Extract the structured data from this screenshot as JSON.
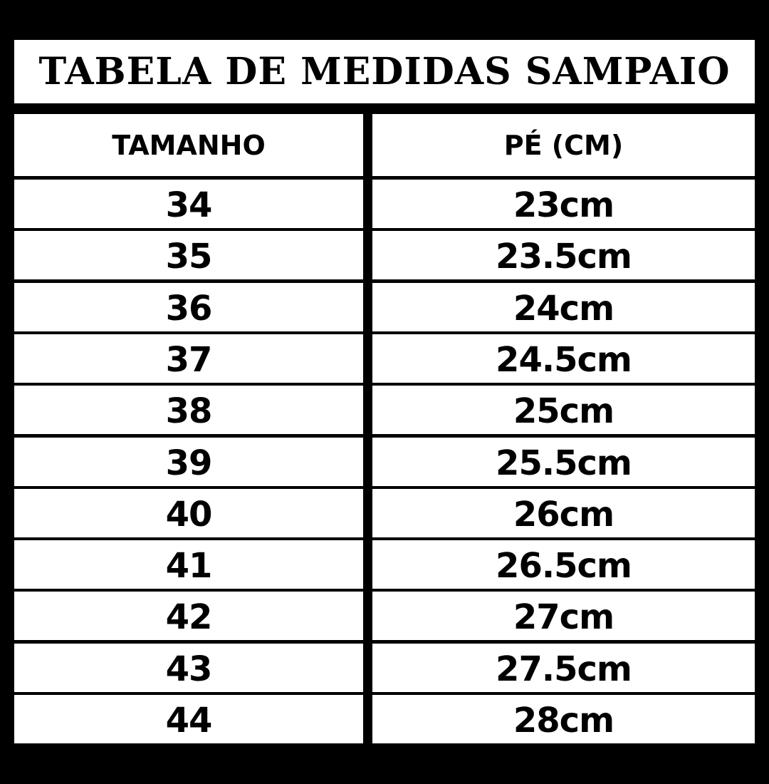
{
  "title": "TABELA DE MEDIDAS SAMPAIO",
  "columns": [
    "TAMANHO",
    "PÉ (CM)"
  ],
  "rows": [
    {
      "size": "34",
      "foot": "23cm"
    },
    {
      "size": "35",
      "foot": "23.5cm"
    },
    {
      "size": "36",
      "foot": "24cm"
    },
    {
      "size": "37",
      "foot": "24.5cm"
    },
    {
      "size": "38",
      "foot": "25cm"
    },
    {
      "size": "39",
      "foot": "25.5cm"
    },
    {
      "size": "40",
      "foot": "26cm"
    },
    {
      "size": "41",
      "foot": "26.5cm"
    },
    {
      "size": "42",
      "foot": "27cm"
    },
    {
      "size": "43",
      "foot": "27.5cm"
    },
    {
      "size": "44",
      "foot": "28cm"
    }
  ]
}
